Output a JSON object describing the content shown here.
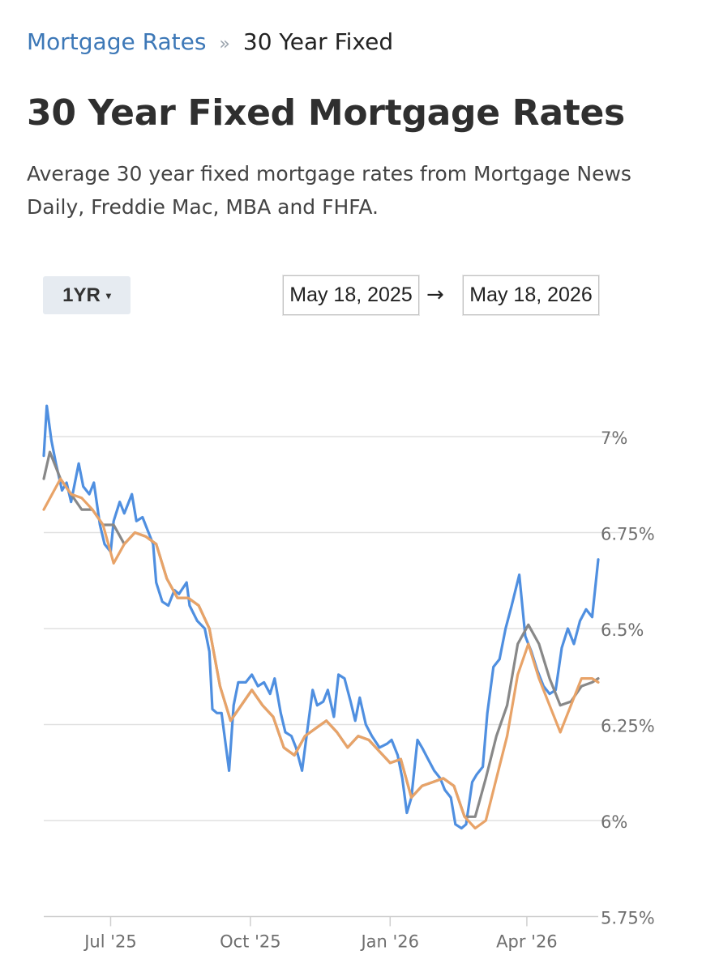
{
  "breadcrumb": {
    "parent": "Mortgage Rates",
    "separator": "»",
    "current": "30 Year Fixed"
  },
  "page": {
    "title": "30 Year Fixed Mortgage Rates",
    "subtitle": "Average 30 year fixed mortgage rates from Mortgage News Daily, Freddie Mac, MBA and FHFA."
  },
  "controls": {
    "range_label": "1YR",
    "range_caret": "▾",
    "start_date": "May 18, 2025",
    "arrow": "→",
    "end_date": "May 18, 2026"
  },
  "chart_data": {
    "type": "line",
    "title": "",
    "xlabel": "",
    "ylabel": "",
    "x_range": [
      "2025-05-18",
      "2026-05-18"
    ],
    "ylim": [
      5.75,
      7.05
    ],
    "y_ticks": [
      7.0,
      6.75,
      6.5,
      6.25,
      6.0,
      5.75
    ],
    "y_tick_labels": [
      "7%",
      "6.75%",
      "6.5%",
      "6.25%",
      "6%",
      "5.75%"
    ],
    "x_ticks": [
      "2025-07-01",
      "2025-10-01",
      "2026-01-01",
      "2026-04-01"
    ],
    "x_tick_labels": [
      "Jul '25",
      "Oct '25",
      "Jan '26",
      "Apr '26"
    ],
    "grid": true,
    "legend": "none",
    "series": [
      {
        "color": "#4f8fe0",
        "points": [
          [
            "2025-05-18",
            6.95
          ],
          [
            "2025-05-20",
            7.08
          ],
          [
            "2025-05-23",
            6.99
          ],
          [
            "2025-05-26",
            6.93
          ],
          [
            "2025-05-30",
            6.86
          ],
          [
            "2025-06-02",
            6.88
          ],
          [
            "2025-06-05",
            6.83
          ],
          [
            "2025-06-10",
            6.93
          ],
          [
            "2025-06-13",
            6.87
          ],
          [
            "2025-06-17",
            6.85
          ],
          [
            "2025-06-20",
            6.88
          ],
          [
            "2025-06-24",
            6.77
          ],
          [
            "2025-06-27",
            6.72
          ],
          [
            "2025-07-01",
            6.7
          ],
          [
            "2025-07-03",
            6.78
          ],
          [
            "2025-07-07",
            6.83
          ],
          [
            "2025-07-10",
            6.8
          ],
          [
            "2025-07-15",
            6.85
          ],
          [
            "2025-07-18",
            6.78
          ],
          [
            "2025-07-22",
            6.79
          ],
          [
            "2025-07-25",
            6.76
          ],
          [
            "2025-07-29",
            6.72
          ],
          [
            "2025-07-31",
            6.62
          ],
          [
            "2025-08-04",
            6.57
          ],
          [
            "2025-08-08",
            6.56
          ],
          [
            "2025-08-12",
            6.6
          ],
          [
            "2025-08-15",
            6.59
          ],
          [
            "2025-08-20",
            6.62
          ],
          [
            "2025-08-22",
            6.56
          ],
          [
            "2025-08-27",
            6.52
          ],
          [
            "2025-09-01",
            6.5
          ],
          [
            "2025-09-04",
            6.44
          ],
          [
            "2025-09-06",
            6.29
          ],
          [
            "2025-09-09",
            6.28
          ],
          [
            "2025-09-12",
            6.28
          ],
          [
            "2025-09-17",
            6.13
          ],
          [
            "2025-09-20",
            6.3
          ],
          [
            "2025-09-23",
            6.36
          ],
          [
            "2025-09-28",
            6.36
          ],
          [
            "2025-10-02",
            6.38
          ],
          [
            "2025-10-06",
            6.35
          ],
          [
            "2025-10-10",
            6.36
          ],
          [
            "2025-10-14",
            6.33
          ],
          [
            "2025-10-17",
            6.37
          ],
          [
            "2025-10-21",
            6.28
          ],
          [
            "2025-10-24",
            6.23
          ],
          [
            "2025-10-28",
            6.22
          ],
          [
            "2025-10-31",
            6.19
          ],
          [
            "2025-11-04",
            6.13
          ],
          [
            "2025-11-07",
            6.22
          ],
          [
            "2025-11-11",
            6.34
          ],
          [
            "2025-11-14",
            6.3
          ],
          [
            "2025-11-18",
            6.31
          ],
          [
            "2025-11-21",
            6.34
          ],
          [
            "2025-11-25",
            6.27
          ],
          [
            "2025-11-28",
            6.38
          ],
          [
            "2025-12-02",
            6.37
          ],
          [
            "2025-12-06",
            6.31
          ],
          [
            "2025-12-09",
            6.26
          ],
          [
            "2025-12-12",
            6.32
          ],
          [
            "2025-12-16",
            6.25
          ],
          [
            "2025-12-20",
            6.22
          ],
          [
            "2025-12-25",
            6.19
          ],
          [
            "2025-12-30",
            6.2
          ],
          [
            "2026-01-02",
            6.21
          ],
          [
            "2026-01-06",
            6.17
          ],
          [
            "2026-01-09",
            6.11
          ],
          [
            "2026-01-12",
            6.02
          ],
          [
            "2026-01-15",
            6.06
          ],
          [
            "2026-01-19",
            6.21
          ],
          [
            "2026-01-22",
            6.19
          ],
          [
            "2026-01-26",
            6.16
          ],
          [
            "2026-01-30",
            6.13
          ],
          [
            "2026-02-03",
            6.11
          ],
          [
            "2026-02-06",
            6.08
          ],
          [
            "2026-02-10",
            6.06
          ],
          [
            "2026-02-13",
            5.99
          ],
          [
            "2026-02-17",
            5.98
          ],
          [
            "2026-02-20",
            5.99
          ],
          [
            "2026-02-24",
            6.1
          ],
          [
            "2026-02-27",
            6.12
          ],
          [
            "2026-03-03",
            6.14
          ],
          [
            "2026-03-06",
            6.28
          ],
          [
            "2026-03-10",
            6.4
          ],
          [
            "2026-03-14",
            6.42
          ],
          [
            "2026-03-18",
            6.5
          ],
          [
            "2026-03-22",
            6.56
          ],
          [
            "2026-03-27",
            6.64
          ],
          [
            "2026-03-31",
            6.48
          ],
          [
            "2026-04-04",
            6.44
          ],
          [
            "2026-04-08",
            6.39
          ],
          [
            "2026-04-12",
            6.35
          ],
          [
            "2026-04-16",
            6.33
          ],
          [
            "2026-04-20",
            6.34
          ],
          [
            "2026-04-24",
            6.45
          ],
          [
            "2026-04-28",
            6.5
          ],
          [
            "2026-05-02",
            6.46
          ],
          [
            "2026-05-06",
            6.52
          ],
          [
            "2026-05-10",
            6.55
          ],
          [
            "2026-05-14",
            6.53
          ],
          [
            "2026-05-18",
            6.68
          ]
        ]
      },
      {
        "color": "#888888",
        "points": [
          [
            "2025-05-18",
            6.89
          ],
          [
            "2025-05-22",
            6.96
          ],
          [
            "2025-05-29",
            6.89
          ],
          [
            "2025-06-05",
            6.85
          ],
          [
            "2025-06-12",
            6.81
          ],
          [
            "2025-06-19",
            6.81
          ],
          [
            "2025-06-26",
            6.77
          ],
          [
            "2025-07-03",
            6.77
          ],
          [
            "2025-07-10",
            6.72
          ],
          [
            "2025-07-17",
            6.75
          ],
          [
            "2025-07-24",
            6.74
          ],
          [
            "2025-07-31",
            6.72
          ],
          [
            "2025-08-07",
            6.63
          ],
          [
            "2025-08-14",
            6.58
          ],
          [
            "2025-08-21",
            6.58
          ],
          [
            "2025-08-28",
            6.56
          ],
          [
            "2025-09-04",
            6.5
          ],
          [
            "2025-09-11",
            6.35
          ],
          [
            "2025-09-18",
            6.26
          ],
          [
            "2025-09-25",
            6.3
          ],
          [
            "2025-10-02",
            6.34
          ],
          [
            "2025-10-09",
            6.3
          ],
          [
            "2025-10-16",
            6.27
          ],
          [
            "2025-10-23",
            6.19
          ],
          [
            "2025-10-30",
            6.17
          ],
          [
            "2025-11-06",
            6.22
          ],
          [
            "2025-11-13",
            6.24
          ],
          [
            "2025-11-20",
            6.26
          ],
          [
            "2025-11-27",
            6.23
          ],
          [
            "2025-12-04",
            6.19
          ],
          [
            "2025-12-11",
            6.22
          ],
          [
            "2025-12-18",
            6.21
          ],
          [
            "2025-12-25",
            6.18
          ],
          [
            "2026-01-01",
            6.15
          ],
          [
            "2026-01-08",
            6.16
          ],
          [
            "2026-01-15",
            6.06
          ],
          [
            "2026-01-22",
            6.09
          ],
          [
            "2026-01-29",
            6.1
          ],
          [
            "2026-02-05",
            6.11
          ],
          [
            "2026-02-12",
            6.09
          ],
          [
            "2026-02-19",
            6.01
          ],
          [
            "2026-02-26",
            6.01
          ],
          [
            "2026-03-05",
            6.11
          ],
          [
            "2026-03-12",
            6.22
          ],
          [
            "2026-03-19",
            6.3
          ],
          [
            "2026-03-26",
            6.46
          ],
          [
            "2026-04-02",
            6.51
          ],
          [
            "2026-04-09",
            6.46
          ],
          [
            "2026-04-16",
            6.37
          ],
          [
            "2026-04-23",
            6.3
          ],
          [
            "2026-04-30",
            6.31
          ],
          [
            "2026-05-07",
            6.35
          ],
          [
            "2026-05-14",
            6.36
          ],
          [
            "2026-05-18",
            6.37
          ]
        ]
      },
      {
        "color": "#e8a368",
        "points": [
          [
            "2025-05-18",
            6.81
          ],
          [
            "2025-05-29",
            6.89
          ],
          [
            "2025-06-05",
            6.85
          ],
          [
            "2025-06-12",
            6.84
          ],
          [
            "2025-06-19",
            6.81
          ],
          [
            "2025-06-26",
            6.77
          ],
          [
            "2025-07-03",
            6.67
          ],
          [
            "2025-07-10",
            6.72
          ],
          [
            "2025-07-17",
            6.75
          ],
          [
            "2025-07-24",
            6.74
          ],
          [
            "2025-07-31",
            6.72
          ],
          [
            "2025-08-07",
            6.63
          ],
          [
            "2025-08-14",
            6.58
          ],
          [
            "2025-08-21",
            6.58
          ],
          [
            "2025-08-28",
            6.56
          ],
          [
            "2025-09-04",
            6.5
          ],
          [
            "2025-09-11",
            6.35
          ],
          [
            "2025-09-18",
            6.26
          ],
          [
            "2025-09-25",
            6.3
          ],
          [
            "2025-10-02",
            6.34
          ],
          [
            "2025-10-09",
            6.3
          ],
          [
            "2025-10-16",
            6.27
          ],
          [
            "2025-10-23",
            6.19
          ],
          [
            "2025-10-30",
            6.17
          ],
          [
            "2025-11-06",
            6.22
          ],
          [
            "2025-11-13",
            6.24
          ],
          [
            "2025-11-20",
            6.26
          ],
          [
            "2025-11-27",
            6.23
          ],
          [
            "2025-12-04",
            6.19
          ],
          [
            "2025-12-11",
            6.22
          ],
          [
            "2025-12-18",
            6.21
          ],
          [
            "2025-12-25",
            6.18
          ],
          [
            "2026-01-01",
            6.15
          ],
          [
            "2026-01-08",
            6.16
          ],
          [
            "2026-01-15",
            6.06
          ],
          [
            "2026-01-22",
            6.09
          ],
          [
            "2026-01-29",
            6.1
          ],
          [
            "2026-02-05",
            6.11
          ],
          [
            "2026-02-12",
            6.09
          ],
          [
            "2026-02-19",
            6.01
          ],
          [
            "2026-02-26",
            5.98
          ],
          [
            "2026-03-05",
            6.0
          ],
          [
            "2026-03-12",
            6.11
          ],
          [
            "2026-03-19",
            6.22
          ],
          [
            "2026-03-26",
            6.38
          ],
          [
            "2026-04-02",
            6.46
          ],
          [
            "2026-04-09",
            6.37
          ],
          [
            "2026-04-16",
            6.3
          ],
          [
            "2026-04-23",
            6.23
          ],
          [
            "2026-04-30",
            6.3
          ],
          [
            "2026-05-07",
            6.37
          ],
          [
            "2026-05-14",
            6.37
          ],
          [
            "2026-05-18",
            6.36
          ]
        ]
      }
    ]
  }
}
